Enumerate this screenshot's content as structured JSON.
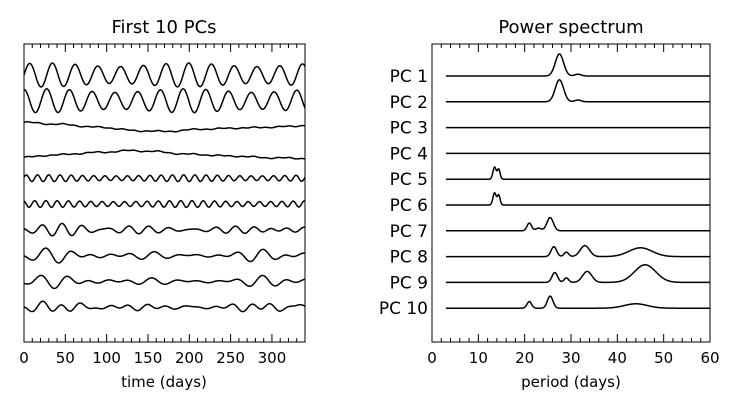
{
  "colors": {
    "ink": "#000000",
    "background": "#ffffff"
  },
  "chart_data": [
    {
      "type": "line",
      "title": "First 10 PCs",
      "xlabel": "time (days)",
      "ylabel": "",
      "xlim": [
        0,
        340
      ],
      "xticks": [
        0,
        50,
        100,
        150,
        200,
        250,
        300
      ],
      "xticklabels": [
        "0",
        "50",
        "100",
        "150",
        "200",
        "250",
        "300"
      ],
      "series": [
        {
          "kind": "oscillation",
          "amp": 1.0,
          "period_days": 27.5,
          "phase": 0.0
        },
        {
          "kind": "oscillation",
          "amp": 1.0,
          "period_days": 27.5,
          "phase": 1.57
        },
        {
          "kind": "trend",
          "x": [
            0,
            40,
            90,
            140,
            170,
            220,
            270,
            320,
            340
          ],
          "y": [
            0.35,
            0.2,
            -0.05,
            -0.35,
            -0.4,
            -0.2,
            -0.1,
            0.0,
            0.1
          ]
        },
        {
          "kind": "trend",
          "x": [
            0,
            40,
            90,
            130,
            150,
            200,
            250,
            300,
            340
          ],
          "y": [
            -0.4,
            -0.2,
            0.0,
            0.15,
            0.1,
            -0.15,
            -0.3,
            -0.45,
            -0.5
          ]
        },
        {
          "kind": "oscillation",
          "amp": 0.28,
          "period_days": 13.6,
          "phase": 0.3
        },
        {
          "kind": "oscillation",
          "amp": 0.28,
          "period_days": 13.6,
          "phase": 1.9
        },
        {
          "kind": "mixture",
          "amp": 0.45,
          "periods": [
            21,
            25.5,
            27
          ],
          "phase": 0.5
        },
        {
          "kind": "mixture",
          "amp": 0.5,
          "periods": [
            26,
            33,
            45
          ],
          "phase": 1.2
        },
        {
          "kind": "mixture",
          "amp": 0.45,
          "periods": [
            26.5,
            33.5,
            46
          ],
          "phase": 2.4
        },
        {
          "kind": "mixture",
          "amp": 0.4,
          "periods": [
            21,
            25.5,
            44
          ],
          "phase": 0.9
        }
      ]
    },
    {
      "type": "line",
      "title": "Power spectrum",
      "xlabel": "period (days)",
      "ylabel": "",
      "xlim": [
        0,
        60
      ],
      "xticks": [
        0,
        10,
        20,
        30,
        40,
        50,
        60
      ],
      "xticklabels": [
        "0",
        "10",
        "20",
        "30",
        "40",
        "50",
        "60"
      ],
      "plotted_range": [
        3,
        60
      ],
      "series": [
        {
          "name": "PC 1",
          "peaks": [
            {
              "x": 27.5,
              "h": 1.0,
              "w": 0.9
            },
            {
              "x": 31.5,
              "h": 0.08,
              "w": 0.7
            }
          ]
        },
        {
          "name": "PC 2",
          "peaks": [
            {
              "x": 27.5,
              "h": 1.0,
              "w": 0.9
            },
            {
              "x": 31.5,
              "h": 0.08,
              "w": 0.7
            }
          ]
        },
        {
          "name": "PC 3",
          "peaks": []
        },
        {
          "name": "PC 4",
          "peaks": []
        },
        {
          "name": "PC 5",
          "peaks": [
            {
              "x": 13.5,
              "h": 0.55,
              "w": 0.35
            },
            {
              "x": 14.4,
              "h": 0.45,
              "w": 0.3
            }
          ]
        },
        {
          "name": "PC 6",
          "peaks": [
            {
              "x": 13.5,
              "h": 0.55,
              "w": 0.35
            },
            {
              "x": 14.4,
              "h": 0.45,
              "w": 0.3
            }
          ]
        },
        {
          "name": "PC 7",
          "peaks": [
            {
              "x": 21,
              "h": 0.35,
              "w": 0.5
            },
            {
              "x": 25.5,
              "h": 0.6,
              "w": 0.7
            },
            {
              "x": 23,
              "h": 0.12,
              "w": 0.6
            }
          ]
        },
        {
          "name": "PC 8",
          "peaks": [
            {
              "x": 26.3,
              "h": 0.45,
              "w": 0.6
            },
            {
              "x": 29,
              "h": 0.2,
              "w": 0.5
            },
            {
              "x": 33,
              "h": 0.5,
              "w": 1.0
            },
            {
              "x": 45,
              "h": 0.4,
              "w": 2.5
            }
          ]
        },
        {
          "name": "PC 9",
          "peaks": [
            {
              "x": 26.5,
              "h": 0.45,
              "w": 0.6
            },
            {
              "x": 29,
              "h": 0.2,
              "w": 0.5
            },
            {
              "x": 33.5,
              "h": 0.5,
              "w": 1.0
            },
            {
              "x": 46,
              "h": 0.8,
              "w": 2.3
            }
          ]
        },
        {
          "name": "PC 10",
          "peaks": [
            {
              "x": 21,
              "h": 0.3,
              "w": 0.5
            },
            {
              "x": 25.5,
              "h": 0.55,
              "w": 0.6
            },
            {
              "x": 44,
              "h": 0.2,
              "w": 2.5
            }
          ]
        }
      ]
    }
  ]
}
